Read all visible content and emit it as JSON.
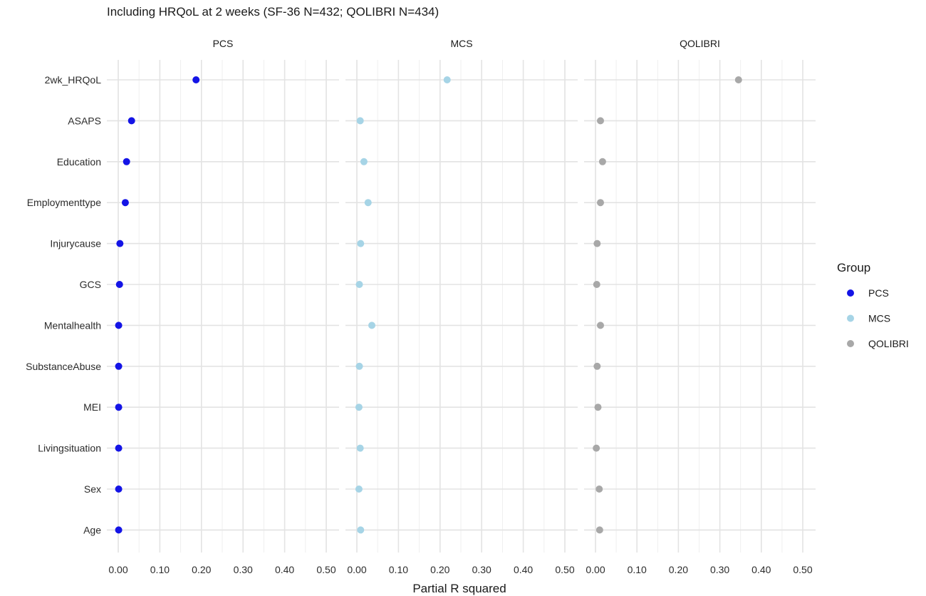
{
  "chart_data": {
    "type": "scatter",
    "title": "Including HRQoL at 2 weeks (SF-36 N=432; QOLIBRI N=434)",
    "xlabel": "Partial R squared",
    "ylabel": "",
    "xlim": [
      0,
      0.5
    ],
    "x_ticks": [
      0.0,
      0.1,
      0.2,
      0.3,
      0.4,
      0.5
    ],
    "x_tick_labels": [
      "0.00",
      "0.10",
      "0.20",
      "0.30",
      "0.40",
      "0.50"
    ],
    "grid": true,
    "categories": [
      "2wk_HRQoL",
      "ASAPS",
      "Education",
      "Employmenttype",
      "Injurycause",
      "GCS",
      "Mentalhealth",
      "SubstanceAbuse",
      "MEI",
      "Livingsituation",
      "Sex",
      "Age"
    ],
    "facets": [
      "PCS",
      "MCS",
      "QOLIBRI"
    ],
    "legend": {
      "title": "Group",
      "placement": "right"
    },
    "series": [
      {
        "name": "PCS",
        "color": "#1414e6",
        "values": [
          0.187,
          0.032,
          0.02,
          0.017,
          0.004,
          0.003,
          0.001,
          0.001,
          0.001,
          0.001,
          0.001,
          0.001
        ]
      },
      {
        "name": "MCS",
        "color": "#a6d4e6",
        "values": [
          0.217,
          0.008,
          0.017,
          0.027,
          0.009,
          0.006,
          0.036,
          0.006,
          0.005,
          0.008,
          0.005,
          0.009
        ]
      },
      {
        "name": "QOLIBRI",
        "color": "#a8a8a8",
        "values": [
          0.345,
          0.012,
          0.017,
          0.012,
          0.004,
          0.003,
          0.012,
          0.004,
          0.006,
          0.002,
          0.009,
          0.01
        ]
      }
    ]
  }
}
